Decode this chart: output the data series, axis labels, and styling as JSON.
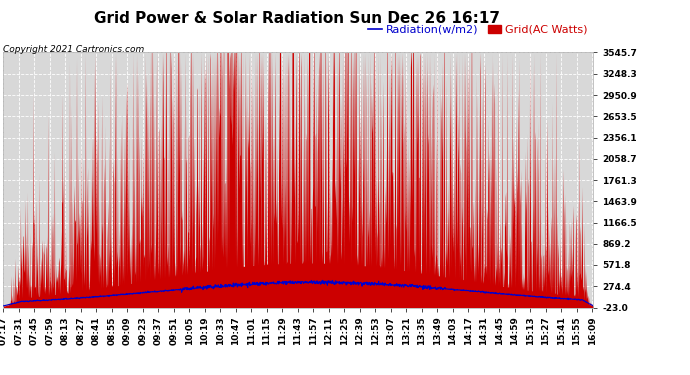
{
  "title": "Grid Power & Solar Radiation Sun Dec 26 16:17",
  "copyright": "Copyright 2021 Cartronics.com",
  "legend_radiation": "Radiation(w/m2)",
  "legend_grid": "Grid(AC Watts)",
  "yticks": [
    -23.0,
    274.4,
    571.8,
    869.2,
    1166.5,
    1463.9,
    1761.3,
    2058.7,
    2356.1,
    2653.5,
    2950.9,
    3248.3,
    3545.7
  ],
  "ylim": [
    -23.0,
    3545.7
  ],
  "background_color": "#ffffff",
  "plot_bg_color": "#d8d8d8",
  "grid_color": "#ffffff",
  "red_color": "#cc0000",
  "blue_color": "#0000cc",
  "title_fontsize": 11,
  "tick_fontsize": 6.5,
  "legend_fontsize": 8,
  "copyright_fontsize": 6.5
}
